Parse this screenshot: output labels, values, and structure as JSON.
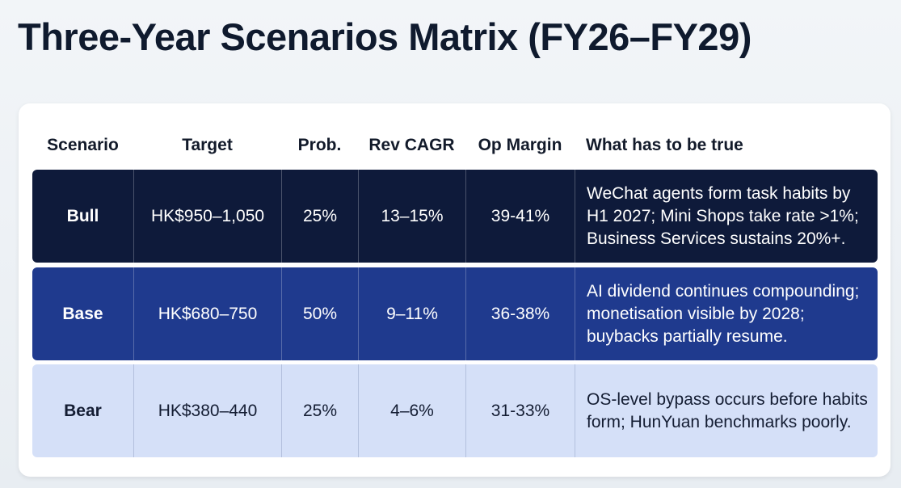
{
  "title": "Three-Year Scenarios Matrix (FY26–FY29)",
  "table": {
    "headers": [
      "Scenario",
      "Target",
      "Prob.",
      "Rev CAGR",
      "Op Margin",
      "What has to be true"
    ],
    "rows": [
      {
        "scenario": "Bull",
        "target": "HK$950–1,050",
        "prob": "25%",
        "rev_cagr": "13–15%",
        "op_margin": "39-41%",
        "conditions": "WeChat agents form task habits by H1 2027; Mini Shops take rate >1%; Business Services sustains 20%+."
      },
      {
        "scenario": "Base",
        "target": "HK$680–750",
        "prob": "50%",
        "rev_cagr": "9–11%",
        "op_margin": "36-38%",
        "conditions": "AI dividend continues compounding; monetisation visible by 2028; buybacks partially resume."
      },
      {
        "scenario": "Bear",
        "target": "HK$380–440",
        "prob": "25%",
        "rev_cagr": "4–6%",
        "op_margin": "31-33%",
        "conditions": "OS-level bypass occurs before habits form; HunYuan benchmarks poorly."
      }
    ]
  },
  "colors": {
    "bull": "#0e1a3a",
    "base": "#1f3a8e",
    "bear": "#d5e0f8"
  }
}
